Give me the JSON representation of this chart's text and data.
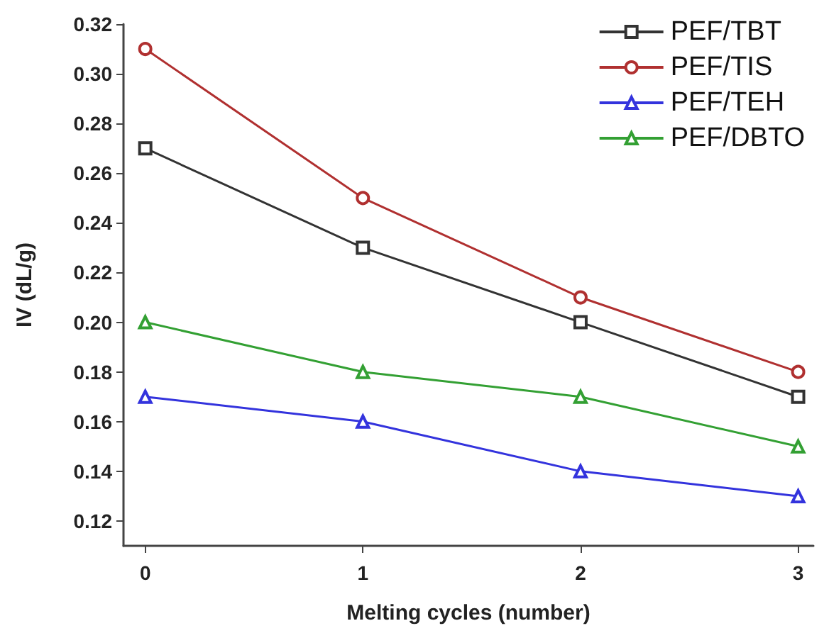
{
  "chart_data": {
    "type": "line",
    "xlabel": "Melting cycles (number)",
    "ylabel": "IV (dL/g)",
    "x": [
      0,
      1,
      2,
      3
    ],
    "series": [
      {
        "name": "PEF/TBT",
        "color": "#333333",
        "marker": "square",
        "values": [
          0.27,
          0.23,
          0.2,
          0.17
        ]
      },
      {
        "name": "PEF/TIS",
        "color": "#b03030",
        "marker": "circle",
        "values": [
          0.31,
          0.25,
          0.21,
          0.18
        ]
      },
      {
        "name": "PEF/TEH",
        "color": "#3333dd",
        "marker": "triangle",
        "values": [
          0.17,
          0.16,
          0.14,
          0.13
        ]
      },
      {
        "name": "PEF/DBTO",
        "color": "#33a033",
        "marker": "triangle",
        "values": [
          0.2,
          0.18,
          0.17,
          0.15
        ]
      }
    ],
    "xlim": [
      -0.1,
      3.07
    ],
    "xticks": [
      0,
      1,
      2,
      3
    ],
    "ylim": [
      0.11,
      0.32
    ],
    "yticks": [
      0.12,
      0.14,
      0.16,
      0.18,
      {
        "value": 0.2,
        "label": "0.20"
      },
      0.22,
      0.24,
      0.26,
      0.28,
      {
        "value": 0.3,
        "label": "0.30"
      },
      0.32
    ],
    "grid": false,
    "legend": "top right",
    "line_style": "solid"
  }
}
